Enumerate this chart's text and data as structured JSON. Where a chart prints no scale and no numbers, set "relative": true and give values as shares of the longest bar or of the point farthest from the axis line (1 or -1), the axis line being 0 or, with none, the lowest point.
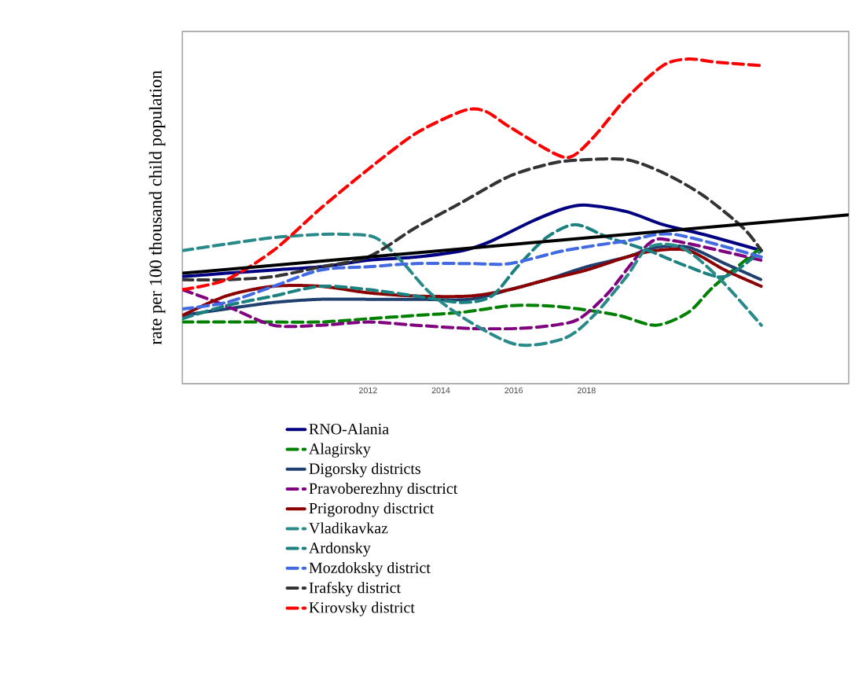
{
  "chart_data": {
    "type": "line",
    "ylabel": "rate per 100 thousand child population",
    "relative": true,
    "legend": "bottom",
    "grid": false,
    "marker": "none",
    "xlim": [
      2006.9,
      2025.2
    ],
    "xticks": [
      2012,
      2014,
      2016,
      2018
    ],
    "series": [
      {
        "name": "RNO-Alania",
        "color": "#000080",
        "line_style": "solid",
        "x": [
          2006.9,
          2008.1,
          2009.4,
          2010.7,
          2012,
          2013.3,
          2014.6,
          2015.4,
          2016.5,
          2017.4,
          2018,
          2019.1,
          2020.1,
          2021.2,
          2022.8
        ],
        "values": [
          0.33,
          0.34,
          0.35,
          0.36,
          0.38,
          0.39,
          0.41,
          0.44,
          0.5,
          0.54,
          0.55,
          0.53,
          0.49,
          0.46,
          0.41
        ]
      },
      {
        "name": "Alagirsky",
        "color": "#008000",
        "line_style": "dashed",
        "x": [
          2006.9,
          2008.1,
          2009.4,
          2010.7,
          2012,
          2013.3,
          2014.6,
          2015.9,
          2016.9,
          2017.8,
          2018.9,
          2019.9,
          2020.8,
          2021.5,
          2022.8
        ],
        "values": [
          0.19,
          0.19,
          0.19,
          0.19,
          0.2,
          0.21,
          0.22,
          0.24,
          0.24,
          0.23,
          0.21,
          0.18,
          0.22,
          0.3,
          0.42
        ]
      },
      {
        "name": "Digorsky districts",
        "color": "#1f3f6f",
        "line_style": "dotted",
        "x": [
          2006.9,
          2008.1,
          2009.4,
          2010.7,
          2012,
          2013.3,
          2014.8,
          2015.9,
          2016.9,
          2018,
          2019.1,
          2019.9,
          2020.8,
          2021.8,
          2022.8
        ],
        "values": [
          0.21,
          0.23,
          0.25,
          0.26,
          0.26,
          0.26,
          0.26,
          0.29,
          0.32,
          0.36,
          0.39,
          0.42,
          0.42,
          0.37,
          0.32
        ]
      },
      {
        "name": "Pravoberezhny disctrict",
        "color": "#800080",
        "line_style": "dashed",
        "x": [
          2006.9,
          2008.1,
          2009.4,
          2010.7,
          2012,
          2013.3,
          2014.8,
          2016.1,
          2017.1,
          2017.8,
          2018.6,
          2019.7,
          2020.4,
          2022.8
        ],
        "values": [
          0.29,
          0.24,
          0.18,
          0.18,
          0.19,
          0.18,
          0.17,
          0.17,
          0.18,
          0.2,
          0.28,
          0.43,
          0.44,
          0.38
        ]
      },
      {
        "name": "Prigorodny disctrict",
        "color": "#8b0000",
        "line_style": "dotted",
        "x": [
          2006.9,
          2008.1,
          2009.4,
          2010.7,
          2012,
          2013.3,
          2014.8,
          2015.9,
          2016.9,
          2018,
          2019.1,
          2019.9,
          2020.8,
          2021.8,
          2022.8
        ],
        "values": [
          0.21,
          0.27,
          0.3,
          0.3,
          0.28,
          0.27,
          0.27,
          0.29,
          0.32,
          0.35,
          0.39,
          0.41,
          0.41,
          0.35,
          0.3
        ]
      },
      {
        "name": "Vladikavkaz",
        "color": "#2a8a8a",
        "line_style": "dashed",
        "x": [
          2006.9,
          2008.1,
          2009.4,
          2010.7,
          2011.4,
          2012.2,
          2012.9,
          2013.7,
          2014.8,
          2016.1,
          2017.4,
          2018.2,
          2019.1,
          2019.7,
          2020.6,
          2021.6,
          2022.8
        ],
        "values": [
          0.41,
          0.43,
          0.45,
          0.46,
          0.46,
          0.45,
          0.38,
          0.28,
          0.19,
          0.12,
          0.14,
          0.21,
          0.33,
          0.42,
          0.42,
          0.33,
          0.18
        ]
      },
      {
        "name": "Ardonsky",
        "color": "#1a8080",
        "line_style": "dashed",
        "x": [
          2006.9,
          2008.1,
          2009.4,
          2010.7,
          2012,
          2013.3,
          2014.6,
          2015.4,
          2016.1,
          2016.9,
          2017.7,
          2018.6,
          2019.7,
          2020.8,
          2021.8,
          2022.8
        ],
        "values": [
          0.2,
          0.24,
          0.27,
          0.3,
          0.29,
          0.27,
          0.25,
          0.27,
          0.36,
          0.45,
          0.49,
          0.45,
          0.41,
          0.36,
          0.33,
          0.41
        ]
      },
      {
        "name": "Mozdoksky district",
        "color": "#4169e1",
        "line_style": "dashed",
        "x": [
          2006.9,
          2008.1,
          2009.4,
          2010.7,
          2012,
          2013.3,
          2014.8,
          2015.9,
          2017.4,
          2019.1,
          2020.4,
          2022.8
        ],
        "values": [
          0.23,
          0.25,
          0.3,
          0.35,
          0.36,
          0.37,
          0.37,
          0.37,
          0.41,
          0.44,
          0.46,
          0.39
        ]
      },
      {
        "name": "Irafsky district",
        "color": "#333333",
        "line_style": "dashed",
        "x": [
          2006.9,
          2008.1,
          2009.4,
          2010.7,
          2012,
          2013.3,
          2014.6,
          2015.9,
          2017.1,
          2018,
          2019.1,
          2020.1,
          2021.2,
          2022.3,
          2022.8
        ],
        "values": [
          0.32,
          0.32,
          0.33,
          0.36,
          0.39,
          0.48,
          0.56,
          0.64,
          0.68,
          0.69,
          0.69,
          0.65,
          0.58,
          0.48,
          0.41
        ]
      },
      {
        "name": "Kirovsky district",
        "color": "#ff0000",
        "line_style": "dashed",
        "x": [
          2006.9,
          2008.1,
          2009.4,
          2010.7,
          2012,
          2013.3,
          2014.6,
          2015.2,
          2015.9,
          2017.1,
          2017.6,
          2018.2,
          2019.1,
          2020.1,
          2020.8,
          2021.6,
          2022.8
        ],
        "values": [
          0.29,
          0.32,
          0.41,
          0.54,
          0.66,
          0.77,
          0.84,
          0.84,
          0.79,
          0.71,
          0.7,
          0.76,
          0.88,
          0.98,
          1.0,
          0.99,
          0.98
        ]
      },
      {
        "color": "#000000",
        "line_style": "solid",
        "x": [
          2006.9,
          2025.2
        ],
        "values": [
          0.34,
          0.52
        ]
      }
    ]
  }
}
